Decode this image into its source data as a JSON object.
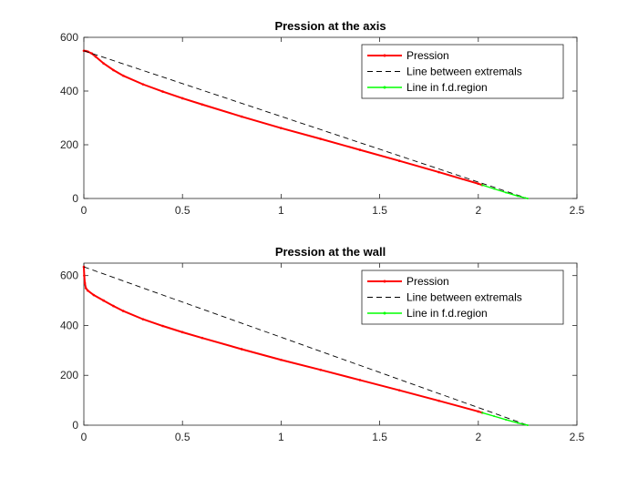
{
  "chart_data": [
    {
      "type": "line",
      "title": "Pression at the axis",
      "xlabel": "",
      "ylabel": "",
      "xlim": [
        0,
        2.5
      ],
      "ylim": [
        0,
        600
      ],
      "xticks": [
        0,
        0.5,
        1,
        1.5,
        2,
        2.5
      ],
      "yticks": [
        0,
        200,
        400,
        600
      ],
      "xtick_labels": [
        "0",
        "0.5",
        "1",
        "1.5",
        "2",
        "2.5"
      ],
      "ytick_labels": [
        "0",
        "200",
        "400",
        "600"
      ],
      "grid": false,
      "legend_position": "top-right",
      "series": [
        {
          "name": "Pression",
          "color": "#ff0000",
          "style": "solid-dot",
          "x": [
            0,
            0.01,
            0.02,
            0.04,
            0.06,
            0.1,
            0.15,
            0.2,
            0.3,
            0.4,
            0.5,
            0.6,
            0.8,
            1.0,
            1.2,
            1.4,
            1.6,
            1.8,
            2.0,
            2.02
          ],
          "y": [
            550,
            549,
            547,
            540,
            528,
            503,
            478,
            457,
            425,
            398,
            373,
            350,
            305,
            262,
            222,
            181,
            140,
            98,
            55,
            50
          ]
        },
        {
          "name": "Line between extremals",
          "color": "#000000",
          "style": "dashed",
          "x": [
            0,
            2.25
          ],
          "y": [
            550,
            0
          ]
        },
        {
          "name": "Line in f.d.region",
          "color": "#00ff00",
          "style": "solid-dot",
          "x": [
            2.02,
            2.08,
            2.14,
            2.2,
            2.25
          ],
          "y": [
            50,
            36,
            22,
            9,
            0
          ]
        }
      ]
    },
    {
      "type": "line",
      "title": "Pression at the wall",
      "xlabel": "",
      "ylabel": "",
      "xlim": [
        0,
        2.5
      ],
      "ylim": [
        0,
        650
      ],
      "xticks": [
        0,
        0.5,
        1,
        1.5,
        2,
        2.5
      ],
      "yticks": [
        0,
        200,
        400,
        600
      ],
      "xtick_labels": [
        "0",
        "0.5",
        "1",
        "1.5",
        "2",
        "2.5"
      ],
      "ytick_labels": [
        "0",
        "200",
        "400",
        "600"
      ],
      "grid": false,
      "legend_position": "top-right",
      "series": [
        {
          "name": "Pression",
          "color": "#ff0000",
          "style": "solid-dot",
          "x": [
            0,
            0.002,
            0.005,
            0.01,
            0.02,
            0.05,
            0.1,
            0.15,
            0.2,
            0.3,
            0.4,
            0.5,
            0.6,
            0.8,
            1.0,
            1.2,
            1.4,
            1.6,
            1.8,
            2.0,
            2.02
          ],
          "y": [
            635,
            600,
            570,
            550,
            540,
            522,
            500,
            478,
            458,
            425,
            398,
            373,
            350,
            305,
            262,
            222,
            181,
            140,
            98,
            55,
            50
          ]
        },
        {
          "name": "Line between extremals",
          "color": "#000000",
          "style": "dashed",
          "x": [
            0,
            2.25
          ],
          "y": [
            635,
            0
          ]
        },
        {
          "name": "Line in f.d.region",
          "color": "#00ff00",
          "style": "solid-dot",
          "x": [
            2.02,
            2.08,
            2.14,
            2.2,
            2.25
          ],
          "y": [
            50,
            36,
            22,
            9,
            0
          ]
        }
      ]
    }
  ]
}
